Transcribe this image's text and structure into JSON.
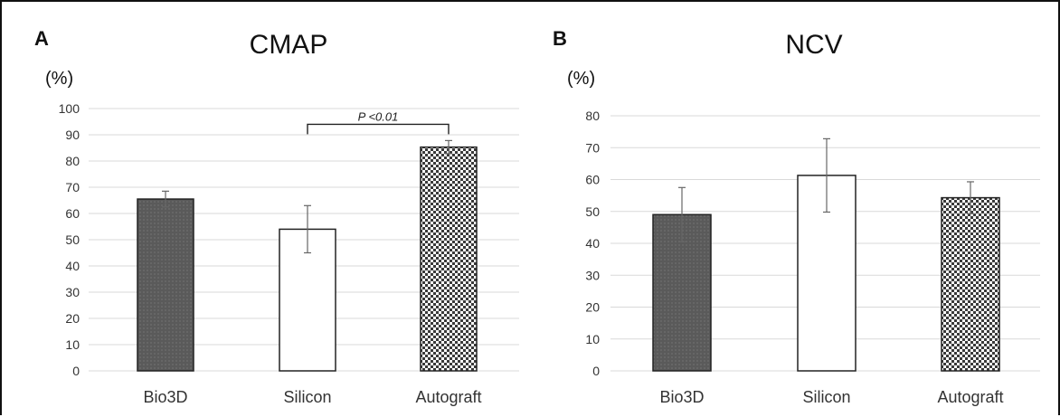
{
  "chart_data": [
    {
      "type": "bar",
      "panel": "A",
      "title": "CMAP",
      "ylabel": "(%)",
      "xlabel": "",
      "ylim": [
        0,
        100
      ],
      "ytick_step": 10,
      "grid": true,
      "categories": [
        "Bio3D",
        "Silicon",
        "Autograft"
      ],
      "values": [
        65.5,
        54,
        85.3
      ],
      "error": [
        3,
        9,
        2.5
      ],
      "fills": [
        "dark",
        "white",
        "checker"
      ],
      "annotations": [
        {
          "type": "significance",
          "from": "Silicon",
          "to": "Autograft",
          "y": 94,
          "label": "P <0.01"
        }
      ]
    },
    {
      "type": "bar",
      "panel": "B",
      "title": "NCV",
      "ylabel": "(%)",
      "xlabel": "",
      "ylim": [
        0,
        80
      ],
      "ytick_step": 10,
      "grid": true,
      "categories": [
        "Bio3D",
        "Silicon",
        "Autograft"
      ],
      "values": [
        49,
        61.3,
        54.3
      ],
      "error": [
        8.5,
        11.5,
        5
      ],
      "fills": [
        "dark",
        "white",
        "checker"
      ],
      "annotations": []
    }
  ],
  "colors": {
    "dark_bar": "#5a5a5a",
    "bar_outline": "#222222",
    "grid": "#d9d9d9",
    "checker_dark": "#3a3a3a",
    "checker_light": "#ffffff"
  }
}
